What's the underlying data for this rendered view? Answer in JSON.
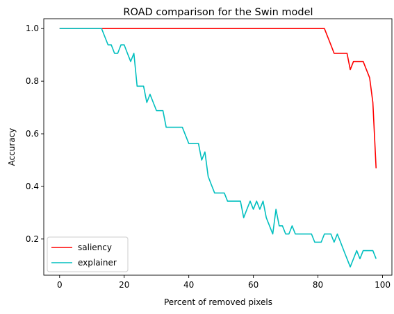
{
  "chart_data": {
    "type": "line",
    "title": "ROAD comparison for the Swin model",
    "xlabel": "Percent of removed pixels",
    "ylabel": "Accuracy",
    "xlim": [
      -4.9,
      102.9
    ],
    "ylim": [
      0.0625,
      1.0375
    ],
    "xticks": [
      0,
      20,
      40,
      60,
      80,
      100
    ],
    "yticks": [
      0.2,
      0.4,
      0.6,
      0.8,
      1.0
    ],
    "xtick_labels": [
      "0",
      "20",
      "40",
      "60",
      "80",
      "100"
    ],
    "ytick_labels": [
      "0.2",
      "0.4",
      "0.6",
      "0.8",
      "1.0"
    ],
    "grid": false,
    "legend_position": "lower-left",
    "series": [
      {
        "name": "saliency",
        "color": "#ff0000",
        "x": [
          0,
          82,
          83,
          84,
          85,
          86,
          87,
          88,
          89,
          90,
          91,
          92,
          93,
          94,
          95,
          96,
          97,
          98
        ],
        "y": [
          1.0,
          1.0,
          0.969,
          0.938,
          0.906,
          0.906,
          0.906,
          0.906,
          0.906,
          0.844,
          0.875,
          0.875,
          0.875,
          0.875,
          0.844,
          0.813,
          0.719,
          0.469
        ]
      },
      {
        "name": "explainer",
        "color": "#00bfbf",
        "x": [
          0,
          13,
          14,
          15,
          16,
          17,
          18,
          19,
          20,
          21,
          22,
          23,
          24,
          25,
          26,
          27,
          28,
          29,
          30,
          31,
          32,
          33,
          34,
          35,
          36,
          37,
          38,
          39,
          40,
          41,
          42,
          43,
          44,
          45,
          46,
          47,
          48,
          49,
          50,
          51,
          52,
          53,
          54,
          55,
          56,
          57,
          58,
          59,
          60,
          61,
          62,
          63,
          64,
          65,
          66,
          67,
          68,
          69,
          70,
          71,
          72,
          73,
          74,
          75,
          76,
          77,
          78,
          79,
          80,
          81,
          82,
          83,
          84,
          85,
          86,
          87,
          88,
          89,
          90,
          91,
          92,
          93,
          94,
          95,
          96,
          97,
          98
        ],
        "y": [
          1.0,
          1.0,
          0.969,
          0.938,
          0.938,
          0.906,
          0.906,
          0.938,
          0.938,
          0.906,
          0.875,
          0.906,
          0.781,
          0.781,
          0.781,
          0.719,
          0.75,
          0.719,
          0.688,
          0.688,
          0.688,
          0.625,
          0.625,
          0.625,
          0.625,
          0.625,
          0.625,
          0.594,
          0.563,
          0.563,
          0.563,
          0.563,
          0.5,
          0.531,
          0.438,
          0.406,
          0.375,
          0.375,
          0.375,
          0.375,
          0.344,
          0.344,
          0.344,
          0.344,
          0.344,
          0.281,
          0.313,
          0.344,
          0.313,
          0.344,
          0.313,
          0.344,
          0.281,
          0.25,
          0.219,
          0.313,
          0.25,
          0.25,
          0.219,
          0.219,
          0.25,
          0.219,
          0.219,
          0.219,
          0.219,
          0.219,
          0.219,
          0.188,
          0.188,
          0.188,
          0.219,
          0.219,
          0.219,
          0.188,
          0.219,
          0.188,
          0.156,
          0.125,
          0.094,
          0.125,
          0.156,
          0.125,
          0.156,
          0.156,
          0.156,
          0.156,
          0.125
        ]
      }
    ]
  }
}
